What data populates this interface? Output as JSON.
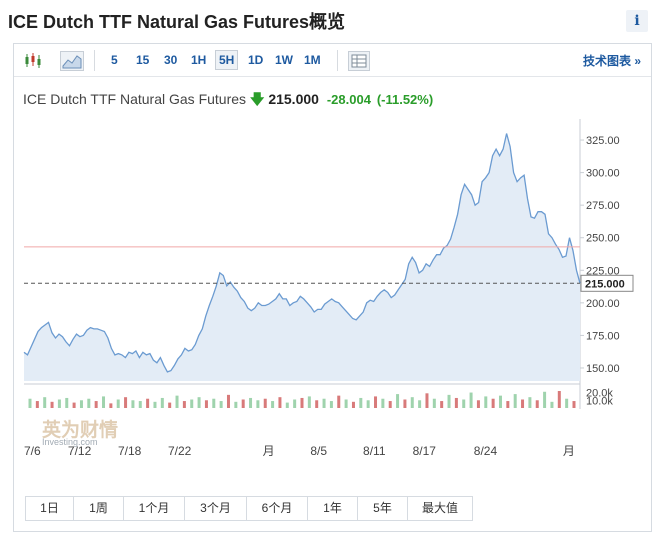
{
  "page": {
    "title": "ICE Dutch TTF Natural Gas Futures概览",
    "info_label": "i"
  },
  "toolbar": {
    "timeframes": [
      "5",
      "15",
      "30",
      "1H",
      "5H",
      "1D",
      "1W",
      "1M"
    ],
    "active_timeframe": "5H",
    "advanced_chart_label": "技术图表 »"
  },
  "quote": {
    "name": "ICE Dutch TTF Natural Gas Futures",
    "direction": "down",
    "price": "215.000",
    "change": "-28.004",
    "change_pct": "(-11.52%)"
  },
  "watermark": {
    "logo_text": "英为财情",
    "logo_sub": "Investing.com"
  },
  "range_buttons": [
    "1日",
    "1周",
    "1个月",
    "3个月",
    "6个月",
    "1年",
    "5年",
    "最大值"
  ],
  "colors": {
    "line": "#6b9bd1",
    "area": "#e3ecf6",
    "up_volume": "#9fd3ad",
    "down_volume": "#d87a7a",
    "prev_close_line": "#f0a8a8",
    "price_label_bg": "#ffffff",
    "link": "#1e5aa0",
    "positive": "#2a9d2a"
  },
  "chart_data": {
    "type": "area",
    "y_ticks": [
      "325.00",
      "300.00",
      "275.00",
      "250.00",
      "225.00",
      "200.00",
      "175.00",
      "150.00"
    ],
    "ylim": [
      140,
      335
    ],
    "current_price": 215.0,
    "current_price_label": "215.000",
    "previous_close": 243.0,
    "volume_ticks": [
      "20.0k",
      "10.0k"
    ],
    "volume_max": 22000,
    "x_labels": [
      "7/6",
      "7/12",
      "7/18",
      "7/22",
      "月",
      "8/5",
      "8/11",
      "8/17",
      "8/24",
      "月"
    ],
    "x_label_positions": [
      0.0,
      0.1,
      0.19,
      0.28,
      0.44,
      0.53,
      0.63,
      0.72,
      0.83,
      0.98
    ],
    "price": [
      162,
      160,
      166,
      172,
      178,
      181,
      183,
      185,
      177,
      173,
      176,
      174,
      170,
      167,
      172,
      176,
      174,
      175,
      179,
      181,
      180,
      180,
      179,
      178,
      173,
      165,
      160,
      161,
      160,
      158,
      162,
      161,
      163,
      158,
      162,
      160,
      161,
      156,
      154,
      158,
      152,
      147,
      148,
      152,
      157,
      160,
      165,
      163,
      164,
      168,
      175,
      180,
      190,
      198,
      205,
      213,
      223,
      221,
      213,
      216,
      212,
      209,
      204,
      201,
      196,
      194,
      196,
      200,
      198,
      198,
      199,
      201,
      203,
      207,
      203,
      203,
      198,
      200,
      201,
      205,
      203,
      200,
      197,
      193,
      195,
      195,
      199,
      201,
      203,
      201,
      200,
      197,
      194,
      191,
      188,
      187,
      190,
      193,
      200,
      202,
      201,
      205,
      208,
      210,
      208,
      204,
      206,
      210,
      214,
      218,
      230,
      235,
      231,
      223,
      225,
      230,
      228,
      233,
      237,
      237,
      242,
      244,
      249,
      258,
      268,
      283,
      291,
      287,
      283,
      275,
      277,
      293,
      296,
      300,
      313,
      318,
      313,
      318,
      330,
      320,
      300,
      293,
      296,
      298,
      280,
      266,
      265,
      270,
      270,
      268,
      253,
      250,
      245,
      241,
      235,
      236,
      250,
      240,
      225,
      215
    ],
    "volume": [
      {
        "v": 12000,
        "up": true
      },
      {
        "v": 9000,
        "up": false
      },
      {
        "v": 14000,
        "up": true
      },
      {
        "v": 8000,
        "up": false
      },
      {
        "v": 11000,
        "up": true
      },
      {
        "v": 13000,
        "up": true
      },
      {
        "v": 7000,
        "up": false
      },
      {
        "v": 10000,
        "up": true
      },
      {
        "v": 12000,
        "up": true
      },
      {
        "v": 9000,
        "up": false
      },
      {
        "v": 15000,
        "up": true
      },
      {
        "v": 6000,
        "up": false
      },
      {
        "v": 11000,
        "up": true
      },
      {
        "v": 14000,
        "up": false
      },
      {
        "v": 10000,
        "up": true
      },
      {
        "v": 9000,
        "up": true
      },
      {
        "v": 12000,
        "up": false
      },
      {
        "v": 8000,
        "up": true
      },
      {
        "v": 13000,
        "up": true
      },
      {
        "v": 7000,
        "up": false
      },
      {
        "v": 16000,
        "up": true
      },
      {
        "v": 9000,
        "up": false
      },
      {
        "v": 11000,
        "up": true
      },
      {
        "v": 14000,
        "up": true
      },
      {
        "v": 10000,
        "up": false
      },
      {
        "v": 12000,
        "up": true
      },
      {
        "v": 9000,
        "up": true
      },
      {
        "v": 17000,
        "up": false
      },
      {
        "v": 8000,
        "up": true
      },
      {
        "v": 11000,
        "up": false
      },
      {
        "v": 13000,
        "up": true
      },
      {
        "v": 10000,
        "up": true
      },
      {
        "v": 12000,
        "up": false
      },
      {
        "v": 9000,
        "up": true
      },
      {
        "v": 14000,
        "up": false
      },
      {
        "v": 7000,
        "up": true
      },
      {
        "v": 11000,
        "up": true
      },
      {
        "v": 13000,
        "up": false
      },
      {
        "v": 15000,
        "up": true
      },
      {
        "v": 10000,
        "up": false
      },
      {
        "v": 12000,
        "up": true
      },
      {
        "v": 9000,
        "up": true
      },
      {
        "v": 16000,
        "up": false
      },
      {
        "v": 11000,
        "up": true
      },
      {
        "v": 8000,
        "up": false
      },
      {
        "v": 13000,
        "up": true
      },
      {
        "v": 10000,
        "up": true
      },
      {
        "v": 15000,
        "up": false
      },
      {
        "v": 12000,
        "up": true
      },
      {
        "v": 9000,
        "up": false
      },
      {
        "v": 18000,
        "up": true
      },
      {
        "v": 11000,
        "up": false
      },
      {
        "v": 14000,
        "up": true
      },
      {
        "v": 10000,
        "up": true
      },
      {
        "v": 19000,
        "up": false
      },
      {
        "v": 12000,
        "up": true
      },
      {
        "v": 9000,
        "up": false
      },
      {
        "v": 17000,
        "up": true
      },
      {
        "v": 13000,
        "up": false
      },
      {
        "v": 11000,
        "up": true
      },
      {
        "v": 20000,
        "up": true
      },
      {
        "v": 10000,
        "up": false
      },
      {
        "v": 15000,
        "up": true
      },
      {
        "v": 12000,
        "up": false
      },
      {
        "v": 16000,
        "up": true
      },
      {
        "v": 9000,
        "up": false
      },
      {
        "v": 18000,
        "up": true
      },
      {
        "v": 11000,
        "up": false
      },
      {
        "v": 14000,
        "up": true
      },
      {
        "v": 10000,
        "up": false
      },
      {
        "v": 21000,
        "up": true
      },
      {
        "v": 8000,
        "up": true
      },
      {
        "v": 22000,
        "up": false
      },
      {
        "v": 12000,
        "up": true
      },
      {
        "v": 9000,
        "up": false
      }
    ]
  }
}
